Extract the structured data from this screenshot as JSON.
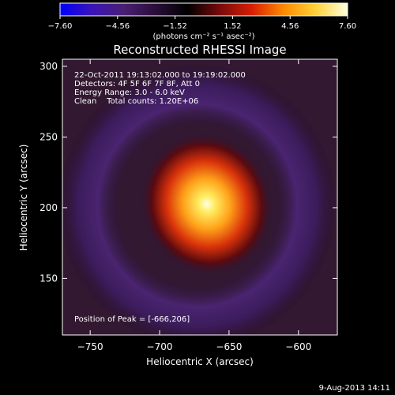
{
  "colorbar": {
    "ticks": [
      "-7.60",
      "-4.56",
      "-1.52",
      "1.52",
      "4.56",
      "7.60"
    ],
    "range": [
      -7.6,
      7.6
    ],
    "unit_label": "(photons cm⁻² s⁻¹ asec⁻²)",
    "colormap": [
      "#0000ff",
      "#3a14b8",
      "#4a1f73",
      "#2a0d3a",
      "#000000",
      "#7a0a0a",
      "#d81e05",
      "#ff8a00",
      "#ffd23a",
      "#ffffe0"
    ]
  },
  "header": {
    "title": "Reconstructed RHESSI Image",
    "info_lines": [
      "22-Oct-2011 19:13:02.000 to 19:19:02.000",
      "Detectors: 4F 5F 6F 7F 8F, Att 0",
      "Energy Range: 3.0 - 6.0 keV",
      "Clean    Total counts: 1.20E+06"
    ],
    "peak_label": "Position of Peak = [-666,206]"
  },
  "footer": {
    "timestamp": "9-Aug-2013 14:11"
  },
  "chart_data": {
    "type": "heatmap",
    "title": "Reconstructed RHESSI Image",
    "xlabel": "Heliocentric X (arcsec)",
    "ylabel": "Heliocentric Y (arcsec)",
    "xlim": [
      -770,
      -572
    ],
    "ylim": [
      110,
      305
    ],
    "xticks": [
      -750,
      -700,
      -650,
      -600
    ],
    "yticks": [
      150,
      200,
      250,
      300
    ],
    "peak": {
      "x": -666,
      "y": 206
    },
    "grid": false,
    "colors": {
      "peak": "#ffffd0",
      "core": "#ff9a10",
      "mid": "#b81a08",
      "ring": "#3c1a5e",
      "background": "#2a1638"
    }
  }
}
